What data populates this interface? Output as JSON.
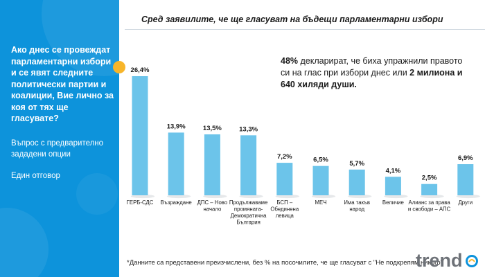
{
  "header": {
    "title": "Сред заявилите, че ще гласуват на бъдещи парламентарни избори"
  },
  "sidebar": {
    "question": "Ако днес се провеждат парламентарни избори и се явят следните политически партии и коалиции, Вие лично за коя от тях ще гласувате?",
    "note_1": "Въпрос с предварително зададени опции",
    "note_2": "Един отговор"
  },
  "summary": {
    "lead_bold": "48%",
    "middle": " декларират, че биха упражнили правото си на глас при избори днес или ",
    "tail_bold": "2 милиона и 640 хиляди души."
  },
  "footnote": "*Данните са представени преизчислени, без % на посочилите, че ще гласуват с \"Не подкрепям никого\"",
  "logo": {
    "text": "trend",
    "icon": "trend-logo-icon"
  },
  "colors": {
    "sidebar": "#0d93db",
    "bar": "#6cc4ea",
    "accent_dot": "#f7b52a",
    "logo_text": "#6e7278"
  },
  "chart_data": {
    "type": "bar",
    "title": "",
    "xlabel": "",
    "ylabel": "",
    "ylim": [
      0,
      30
    ],
    "grid": false,
    "legend": "none",
    "value_suffix": "%",
    "categories": [
      "ГЕРБ-СДС",
      "Възраждане",
      "ДПС – Ново начало",
      "Продължаваме промяната-Демократична България",
      "БСП – Обединена левица",
      "МЕЧ",
      "Има такъв народ",
      "Величие",
      "Алианс за права и свободи – АПС",
      "Други"
    ],
    "category_lines": [
      [
        "ГЕРБ-СДС"
      ],
      [
        "Възраждане"
      ],
      [
        "ДПС – Ново",
        "начало"
      ],
      [
        "Продължаваме",
        "промяната-",
        "Демократична",
        "България"
      ],
      [
        "БСП –",
        "Обединена",
        "левица"
      ],
      [
        "МЕЧ"
      ],
      [
        "Има такъв",
        "народ"
      ],
      [
        "Величие"
      ],
      [
        "Алианс за права",
        "и свободи – АПС"
      ],
      [
        "Други"
      ]
    ],
    "values": [
      26.4,
      13.9,
      13.5,
      13.3,
      7.2,
      6.5,
      5.7,
      4.1,
      2.5,
      6.9
    ],
    "value_labels": [
      "26,4%",
      "13,9%",
      "13,5%",
      "13,3%",
      "7,2%",
      "6,5%",
      "5,7%",
      "4,1%",
      "2,5%",
      "6,9%"
    ]
  }
}
